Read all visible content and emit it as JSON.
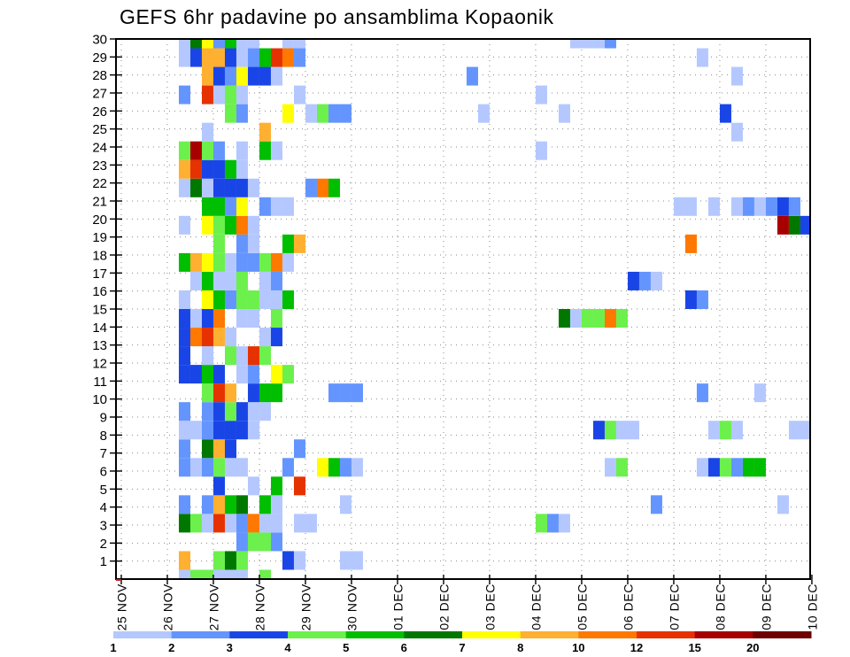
{
  "chart_data": {
    "type": "heatmap",
    "title": "GEFS 6hr padavine po ansamblima Kopaonik",
    "xlabel": "",
    "ylabel": "",
    "x_unit": "6-hour step counted from 25 NOV 00Z",
    "xlim": [
      -0.46,
      59.85
    ],
    "ylim": [
      0,
      30
    ],
    "x_ticks": [
      0,
      4,
      8,
      12,
      16,
      20,
      24,
      28,
      32,
      36,
      40,
      44,
      48,
      52,
      56,
      60
    ],
    "x_tick_labels": [
      "25 NOV",
      "26 NOV",
      "27 NOV",
      "28 NOV",
      "29 NOV",
      "30 NOV",
      "01 DEC",
      "02 DEC",
      "03 DEC",
      "04 DEC",
      "05 DEC",
      "06 DEC",
      "07 DEC",
      "08 DEC",
      "09 DEC",
      "10 DEC"
    ],
    "y_ticks": [
      1,
      2,
      3,
      4,
      5,
      6,
      7,
      8,
      9,
      10,
      11,
      12,
      13,
      14,
      15,
      16,
      17,
      18,
      19,
      20,
      21,
      22,
      23,
      24,
      25,
      26,
      27,
      28,
      29,
      30
    ],
    "y_tick_labels": [
      "1",
      "2",
      "3",
      "4",
      "5",
      "6",
      "7",
      "8",
      "9",
      "10",
      "11",
      "12",
      "13",
      "14",
      "15",
      "16",
      "17",
      "18",
      "19",
      "20",
      "21",
      "22",
      "23",
      "24",
      "25",
      "26",
      "27",
      "28",
      "29",
      "30"
    ],
    "grid": true,
    "legend_position": "bottom",
    "levels": [
      "1",
      "2",
      "3",
      "4",
      "5",
      "6",
      "7",
      "8",
      "10",
      "12",
      "15",
      "20"
    ],
    "colors": [
      "#b4c8ff",
      "#6495ff",
      "#1a45e6",
      "#6cf04c",
      "#00be00",
      "#007800",
      "#ffff00",
      "#ffb030",
      "#ff7800",
      "#e63200",
      "#a80000",
      "#6e0000"
    ],
    "cell_format": "[step, class] where class indexes levels/colors",
    "rows": [
      {
        "member": 1,
        "cells": [
          [
            5,
            0
          ],
          [
            6,
            3
          ],
          [
            7,
            3
          ],
          [
            8,
            0
          ],
          [
            9,
            0
          ],
          [
            10,
            0
          ],
          [
            12,
            3
          ]
        ]
      },
      {
        "member": 2,
        "cells": [
          [
            5,
            7
          ],
          [
            8,
            3
          ],
          [
            9,
            5
          ],
          [
            10,
            3
          ],
          [
            14,
            2
          ],
          [
            15,
            0
          ],
          [
            19,
            0
          ],
          [
            20,
            0
          ]
        ]
      },
      {
        "member": 3,
        "cells": [
          [
            10,
            1
          ],
          [
            11,
            3
          ],
          [
            12,
            3
          ],
          [
            13,
            1
          ]
        ]
      },
      {
        "member": 4,
        "cells": [
          [
            5,
            5
          ],
          [
            6,
            3
          ],
          [
            7,
            0
          ],
          [
            8,
            9
          ],
          [
            9,
            0
          ],
          [
            10,
            1
          ],
          [
            11,
            8
          ],
          [
            12,
            0
          ],
          [
            13,
            0
          ],
          [
            15,
            0
          ],
          [
            16,
            0
          ],
          [
            36,
            3
          ],
          [
            37,
            1
          ],
          [
            38,
            0
          ]
        ]
      },
      {
        "member": 5,
        "cells": [
          [
            5,
            1
          ],
          [
            7,
            1
          ],
          [
            8,
            7
          ],
          [
            9,
            4
          ],
          [
            10,
            5
          ],
          [
            12,
            4
          ],
          [
            13,
            0
          ],
          [
            19,
            0
          ],
          [
            46,
            1
          ],
          [
            57,
            0
          ]
        ]
      },
      {
        "member": 6,
        "cells": [
          [
            8,
            2
          ],
          [
            11,
            0
          ],
          [
            13,
            4
          ],
          [
            15,
            9
          ]
        ]
      },
      {
        "member": 7,
        "cells": [
          [
            5,
            1
          ],
          [
            6,
            0
          ],
          [
            7,
            1
          ],
          [
            8,
            3
          ],
          [
            9,
            0
          ],
          [
            10,
            0
          ],
          [
            14,
            1
          ],
          [
            17,
            6
          ],
          [
            18,
            4
          ],
          [
            19,
            1
          ],
          [
            20,
            0
          ],
          [
            42,
            0
          ],
          [
            43,
            3
          ],
          [
            50,
            0
          ],
          [
            51,
            2
          ],
          [
            52,
            3
          ],
          [
            53,
            1
          ],
          [
            54,
            4
          ],
          [
            55,
            4
          ]
        ]
      },
      {
        "member": 8,
        "cells": [
          [
            5,
            1
          ],
          [
            7,
            5
          ],
          [
            8,
            7
          ],
          [
            9,
            2
          ],
          [
            15,
            1
          ]
        ]
      },
      {
        "member": 9,
        "cells": [
          [
            5,
            0
          ],
          [
            6,
            0
          ],
          [
            7,
            1
          ],
          [
            8,
            2
          ],
          [
            9,
            2
          ],
          [
            10,
            2
          ],
          [
            11,
            0
          ],
          [
            41,
            2
          ],
          [
            42,
            3
          ],
          [
            43,
            0
          ],
          [
            44,
            0
          ],
          [
            51,
            0
          ],
          [
            52,
            3
          ],
          [
            53,
            0
          ],
          [
            58,
            0
          ],
          [
            59,
            0
          ]
        ]
      },
      {
        "member": 10,
        "cells": [
          [
            5,
            1
          ],
          [
            7,
            1
          ],
          [
            8,
            2
          ],
          [
            9,
            3
          ],
          [
            10,
            2
          ],
          [
            11,
            0
          ],
          [
            12,
            0
          ]
        ]
      },
      {
        "member": 11,
        "cells": [
          [
            7,
            3
          ],
          [
            8,
            9
          ],
          [
            9,
            7
          ],
          [
            11,
            2
          ],
          [
            12,
            4
          ],
          [
            13,
            4
          ],
          [
            18,
            1
          ],
          [
            19,
            1
          ],
          [
            20,
            1
          ],
          [
            50,
            1
          ],
          [
            55,
            0
          ]
        ]
      },
      {
        "member": 12,
        "cells": [
          [
            5,
            2
          ],
          [
            6,
            2
          ],
          [
            7,
            4
          ],
          [
            8,
            2
          ],
          [
            10,
            0
          ],
          [
            11,
            1
          ],
          [
            13,
            6
          ],
          [
            14,
            3
          ]
        ]
      },
      {
        "member": 13,
        "cells": [
          [
            5,
            2
          ],
          [
            7,
            0
          ],
          [
            9,
            3
          ],
          [
            10,
            0
          ],
          [
            11,
            9
          ],
          [
            12,
            3
          ]
        ]
      },
      {
        "member": 14,
        "cells": [
          [
            5,
            2
          ],
          [
            6,
            8
          ],
          [
            7,
            9
          ],
          [
            8,
            7
          ],
          [
            9,
            0
          ],
          [
            12,
            0
          ],
          [
            13,
            2
          ]
        ]
      },
      {
        "member": 15,
        "cells": [
          [
            5,
            2
          ],
          [
            6,
            0
          ],
          [
            7,
            2
          ],
          [
            8,
            8
          ],
          [
            10,
            0
          ],
          [
            11,
            0
          ],
          [
            13,
            3
          ],
          [
            38,
            5
          ],
          [
            39,
            0
          ],
          [
            40,
            3
          ],
          [
            41,
            3
          ],
          [
            42,
            8
          ],
          [
            43,
            3
          ]
        ]
      },
      {
        "member": 16,
        "cells": [
          [
            5,
            0
          ],
          [
            7,
            6
          ],
          [
            8,
            4
          ],
          [
            9,
            1
          ],
          [
            10,
            3
          ],
          [
            11,
            3
          ],
          [
            12,
            0
          ],
          [
            13,
            0
          ],
          [
            14,
            4
          ],
          [
            49,
            2
          ],
          [
            50,
            1
          ]
        ]
      },
      {
        "member": 17,
        "cells": [
          [
            6,
            0
          ],
          [
            7,
            4
          ],
          [
            8,
            0
          ],
          [
            9,
            0
          ],
          [
            10,
            3
          ],
          [
            12,
            0
          ],
          [
            13,
            1
          ],
          [
            44,
            2
          ],
          [
            45,
            1
          ],
          [
            46,
            0
          ]
        ]
      },
      {
        "member": 18,
        "cells": [
          [
            5,
            4
          ],
          [
            6,
            7
          ],
          [
            7,
            6
          ],
          [
            8,
            3
          ],
          [
            9,
            0
          ],
          [
            10,
            1
          ],
          [
            11,
            1
          ],
          [
            12,
            3
          ],
          [
            13,
            8
          ],
          [
            14,
            0
          ]
        ]
      },
      {
        "member": 19,
        "cells": [
          [
            8,
            3
          ],
          [
            10,
            1
          ],
          [
            11,
            0
          ],
          [
            14,
            4
          ],
          [
            15,
            7
          ],
          [
            49,
            8
          ]
        ]
      },
      {
        "member": 20,
        "cells": [
          [
            5,
            0
          ],
          [
            7,
            6
          ],
          [
            8,
            3
          ],
          [
            9,
            4
          ],
          [
            10,
            8
          ],
          [
            11,
            0
          ],
          [
            57,
            10
          ],
          [
            58,
            5
          ],
          [
            59,
            2
          ]
        ]
      },
      {
        "member": 21,
        "cells": [
          [
            7,
            4
          ],
          [
            8,
            4
          ],
          [
            9,
            1
          ],
          [
            10,
            6
          ],
          [
            12,
            1
          ],
          [
            13,
            0
          ],
          [
            14,
            0
          ],
          [
            48,
            0
          ],
          [
            49,
            0
          ],
          [
            51,
            0
          ],
          [
            53,
            0
          ],
          [
            54,
            1
          ],
          [
            55,
            0
          ],
          [
            56,
            1
          ],
          [
            57,
            2
          ],
          [
            58,
            1
          ]
        ]
      },
      {
        "member": 22,
        "cells": [
          [
            5,
            0
          ],
          [
            6,
            5
          ],
          [
            7,
            0
          ],
          [
            8,
            2
          ],
          [
            9,
            2
          ],
          [
            10,
            2
          ],
          [
            11,
            0
          ],
          [
            16,
            1
          ],
          [
            17,
            8
          ],
          [
            18,
            4
          ]
        ]
      },
      {
        "member": 23,
        "cells": [
          [
            5,
            7
          ],
          [
            6,
            9
          ],
          [
            7,
            2
          ],
          [
            8,
            2
          ],
          [
            9,
            4
          ],
          [
            10,
            0
          ]
        ]
      },
      {
        "member": 24,
        "cells": [
          [
            5,
            3
          ],
          [
            6,
            10
          ],
          [
            7,
            3
          ],
          [
            8,
            1
          ],
          [
            10,
            0
          ],
          [
            12,
            4
          ],
          [
            13,
            0
          ],
          [
            36,
            0
          ]
        ]
      },
      {
        "member": 25,
        "cells": [
          [
            7,
            0
          ],
          [
            12,
            7
          ],
          [
            53,
            0
          ]
        ]
      },
      {
        "member": 26,
        "cells": [
          [
            9,
            3
          ],
          [
            10,
            1
          ],
          [
            14,
            6
          ],
          [
            16,
            0
          ],
          [
            17,
            3
          ],
          [
            18,
            1
          ],
          [
            19,
            1
          ],
          [
            31,
            0
          ],
          [
            38,
            0
          ],
          [
            52,
            2
          ]
        ]
      },
      {
        "member": 27,
        "cells": [
          [
            5,
            1
          ],
          [
            7,
            9
          ],
          [
            8,
            0
          ],
          [
            9,
            3
          ],
          [
            10,
            0
          ],
          [
            15,
            0
          ],
          [
            36,
            0
          ]
        ]
      },
      {
        "member": 28,
        "cells": [
          [
            7,
            7
          ],
          [
            8,
            2
          ],
          [
            9,
            1
          ],
          [
            10,
            6
          ],
          [
            11,
            2
          ],
          [
            12,
            2
          ],
          [
            13,
            0
          ],
          [
            30,
            1
          ],
          [
            53,
            0
          ]
        ]
      },
      {
        "member": 29,
        "cells": [
          [
            5,
            0
          ],
          [
            6,
            2
          ],
          [
            7,
            7
          ],
          [
            8,
            7
          ],
          [
            9,
            2
          ],
          [
            10,
            0
          ],
          [
            11,
            1
          ],
          [
            12,
            4
          ],
          [
            13,
            9
          ],
          [
            14,
            8
          ],
          [
            15,
            1
          ],
          [
            50,
            0
          ]
        ]
      },
      {
        "member": 30,
        "cells": [
          [
            5,
            0
          ],
          [
            6,
            5
          ],
          [
            7,
            6
          ],
          [
            8,
            1
          ],
          [
            9,
            4
          ],
          [
            10,
            0
          ],
          [
            11,
            0
          ],
          [
            14,
            0
          ],
          [
            15,
            0
          ],
          [
            39,
            0
          ],
          [
            40,
            0
          ],
          [
            41,
            0
          ],
          [
            42,
            1
          ]
        ]
      }
    ]
  }
}
